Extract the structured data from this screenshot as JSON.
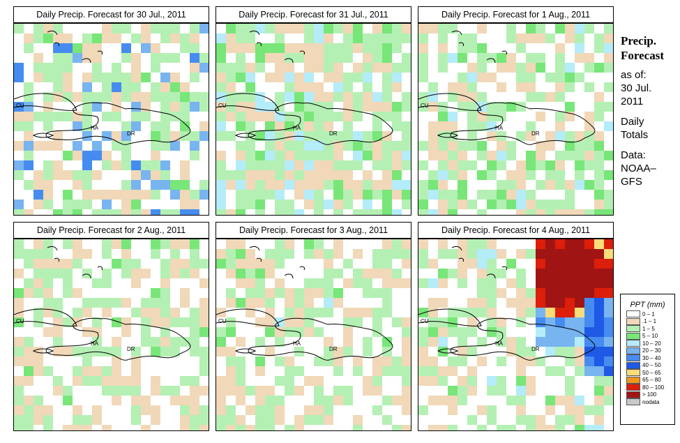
{
  "panels": [
    {
      "title": "Daily Precip. Forecast for  30 Jul., 2011",
      "storm": false
    },
    {
      "title": "Daily Precip. Forecast for  31 Jul., 2011",
      "storm": false
    },
    {
      "title": "Daily Precip. Forecast for  1 Aug., 2011",
      "storm": false
    },
    {
      "title": "Daily Precip. Forecast for  2 Aug., 2011",
      "storm": false
    },
    {
      "title": "Daily Precip. Forecast for  3 Aug., 2011",
      "storm": false
    },
    {
      "title": "Daily Precip. Forecast for  4 Aug., 2011",
      "storm": true
    }
  ],
  "map_labels": {
    "cuba": "CU",
    "haiti": "HA",
    "dominican_republic": "DR"
  },
  "side": {
    "title_line1": "Precip.",
    "title_line2": "Forecast",
    "as_of": "as of:",
    "date_line1": "30 Jul.",
    "date_line2": "2011",
    "totals_line1": "Daily",
    "totals_line2": "Totals",
    "data_line1": "Data:",
    "data_line2": "NOAA–",
    "data_line3": "GFS"
  },
  "legend": {
    "title": "PPT (mm)",
    "items": [
      {
        "label": "0 – 1",
        "color": "#ffffff"
      },
      {
        "label": ".1 – 1",
        "color": "#f0d8b8"
      },
      {
        "label": "1 – 5",
        "color": "#b4f0b4"
      },
      {
        "label": "5 – 10",
        "color": "#78e678"
      },
      {
        "label": "10 – 20",
        "color": "#b4ecfa"
      },
      {
        "label": "20 – 30",
        "color": "#78b4f0"
      },
      {
        "label": "30 – 40",
        "color": "#468cf0"
      },
      {
        "label": "40 – 50",
        "color": "#1e5ae6"
      },
      {
        "label": "50 – 65",
        "color": "#fadc78"
      },
      {
        "label": "65 – 80",
        "color": "#f0961e"
      },
      {
        "label": "80 – 100",
        "color": "#dc1e0a"
      },
      {
        "label": "> 100",
        "color": "#a01414"
      },
      {
        "label": "nodata",
        "color": "#c8c8c8"
      }
    ]
  }
}
